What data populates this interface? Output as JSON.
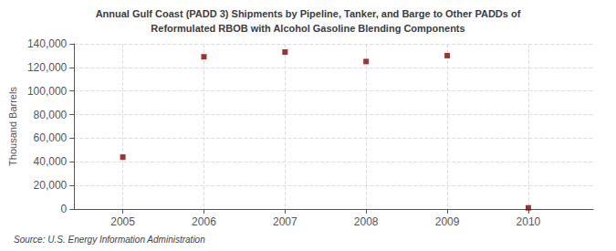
{
  "chart_data": {
    "type": "scatter",
    "title": "Annual Gulf Coast (PADD 3) Shipments by Pipeline, Tanker, and Barge to Other PADDs of",
    "subtitle": "Reformulated RBOB with Alcohol Gasoline Blending Components",
    "ylabel": "Thousand Barrels",
    "annotations": [
      "Source: U.S. Energy Information Administration"
    ],
    "x": [
      2005,
      2006,
      2007,
      2008,
      2009,
      2010
    ],
    "values": [
      44000,
      129000,
      133000,
      125000,
      130000,
      1000
    ],
    "color": "#8b0000",
    "marker": "square",
    "xlim": [
      2004.4,
      2010.8
    ],
    "xticks": [
      2005,
      2006,
      2007,
      2008,
      2009,
      2010
    ],
    "ylim": [
      0,
      140000
    ],
    "yticks": [
      0,
      {
        "value": 20000,
        "label": "20,000"
      },
      {
        "value": 40000,
        "label": "40,000"
      },
      {
        "value": 60000,
        "label": "60,000"
      },
      {
        "value": 80000,
        "label": "80,000"
      },
      {
        "value": 100000,
        "label": "100,000"
      },
      {
        "value": 120000,
        "label": "120,000"
      },
      {
        "value": 140000,
        "label": "140,000"
      }
    ],
    "grid": true
  }
}
